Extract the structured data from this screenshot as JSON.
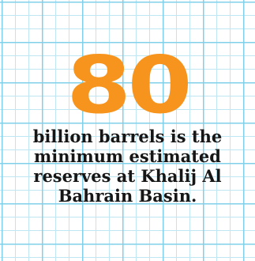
{
  "stat": {
    "value": "80",
    "color": "#f7941d"
  },
  "caption": {
    "lines": [
      "billion barrels is the",
      "minimum estimated",
      "reserves at Khalij Al",
      "Bahrain Basin."
    ],
    "color": "#161616"
  },
  "background": {
    "style": "graph-paper-grid",
    "grid_color": "#7fd0e8"
  }
}
